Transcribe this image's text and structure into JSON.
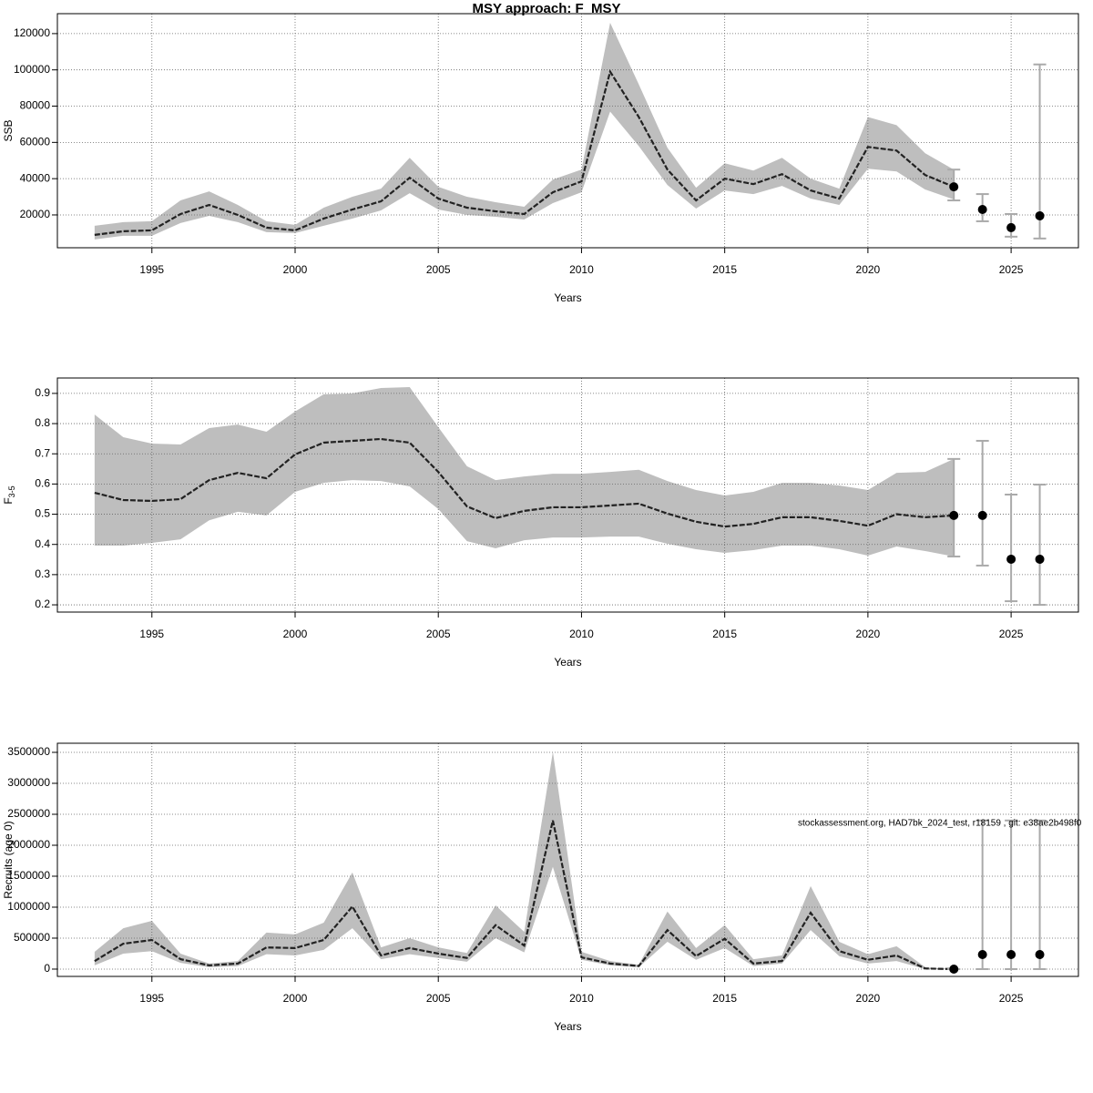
{
  "chart_data": [
    {
      "type": "line",
      "title": "MSY approach: F_MSY",
      "xlabel": "Years",
      "ylabel": "SSB",
      "xlim": [
        1991.7,
        2027.35
      ],
      "xticks": [
        1995,
        2000,
        2005,
        2010,
        2015,
        2020,
        2025
      ],
      "ylim": [
        1900,
        131000
      ],
      "yticks": [
        20000,
        40000,
        60000,
        80000,
        100000,
        120000
      ],
      "grid": true,
      "band_color": "#bebebe",
      "color": "#222222",
      "forecast_color": "#aaaaaa",
      "x": [
        1993,
        1994,
        1995,
        1996,
        1997,
        1998,
        1999,
        2000,
        2001,
        2002,
        2003,
        2004,
        2005,
        2006,
        2007,
        2008,
        2009,
        2010,
        2011,
        2012,
        2013,
        2014,
        2015,
        2016,
        2017,
        2018,
        2019,
        2020,
        2021,
        2022,
        2023
      ],
      "values": [
        9000,
        11000,
        11500,
        20500,
        25500,
        20000,
        13000,
        11500,
        18000,
        23000,
        27500,
        40500,
        29000,
        24000,
        22000,
        20500,
        32500,
        38500,
        99000,
        74000,
        45000,
        28000,
        40000,
        37000,
        42500,
        33500,
        29000,
        57500,
        55500,
        42000,
        35500
      ],
      "lower": [
        6500,
        8500,
        8500,
        15500,
        19500,
        16000,
        10500,
        10000,
        14000,
        18000,
        22500,
        32000,
        23000,
        20000,
        19000,
        17500,
        26500,
        32500,
        77000,
        58000,
        36500,
        23500,
        33500,
        31500,
        36000,
        29000,
        25500,
        45500,
        44000,
        34000,
        28500
      ],
      "upper": [
        14000,
        16000,
        16500,
        28000,
        33000,
        25500,
        16500,
        14500,
        24000,
        30000,
        34500,
        51500,
        35500,
        30000,
        27000,
        24500,
        39500,
        45000,
        126000,
        92000,
        57000,
        35000,
        48500,
        44500,
        51500,
        40000,
        34500,
        74000,
        69500,
        54000,
        45000
      ],
      "forecast": {
        "x": [
          2023,
          2024,
          2025,
          2026
        ],
        "values": [
          35500,
          23000,
          13000,
          19500
        ],
        "lower": [
          28000,
          16500,
          8000,
          7000
        ],
        "upper": [
          45000,
          31500,
          20500,
          103000
        ]
      }
    },
    {
      "type": "line",
      "xlabel": "Years",
      "ylabel": "F",
      "ylabel_sub": "3-5",
      "xlim": [
        1991.7,
        2027.35
      ],
      "xticks": [
        1995,
        2000,
        2005,
        2010,
        2015,
        2020,
        2025
      ],
      "ylim": [
        0.176,
        0.951
      ],
      "yticks": [
        0.2,
        0.3,
        0.4,
        0.5,
        0.6,
        0.7,
        0.8,
        0.9
      ],
      "grid": true,
      "band_color": "#bebebe",
      "color": "#222222",
      "forecast_color": "#aaaaaa",
      "x": [
        1993,
        1994,
        1995,
        1996,
        1997,
        1998,
        1999,
        2000,
        2001,
        2002,
        2003,
        2004,
        2005,
        2006,
        2007,
        2008,
        2009,
        2010,
        2011,
        2012,
        2013,
        2014,
        2015,
        2016,
        2017,
        2018,
        2019,
        2020,
        2021,
        2022,
        2023
      ],
      "values": [
        0.571,
        0.547,
        0.544,
        0.55,
        0.613,
        0.637,
        0.619,
        0.698,
        0.737,
        0.743,
        0.749,
        0.737,
        0.64,
        0.526,
        0.487,
        0.511,
        0.523,
        0.523,
        0.529,
        0.535,
        0.502,
        0.475,
        0.459,
        0.468,
        0.49,
        0.49,
        0.478,
        0.462,
        0.5,
        0.49,
        0.496
      ],
      "lower": [
        0.396,
        0.396,
        0.405,
        0.417,
        0.48,
        0.508,
        0.496,
        0.574,
        0.604,
        0.613,
        0.61,
        0.592,
        0.517,
        0.411,
        0.387,
        0.414,
        0.423,
        0.423,
        0.426,
        0.426,
        0.402,
        0.384,
        0.372,
        0.381,
        0.396,
        0.396,
        0.384,
        0.363,
        0.393,
        0.378,
        0.36
      ],
      "upper": [
        0.83,
        0.755,
        0.734,
        0.731,
        0.785,
        0.797,
        0.773,
        0.84,
        0.897,
        0.9,
        0.918,
        0.921,
        0.788,
        0.659,
        0.613,
        0.625,
        0.634,
        0.634,
        0.64,
        0.647,
        0.61,
        0.58,
        0.562,
        0.574,
        0.604,
        0.604,
        0.595,
        0.58,
        0.637,
        0.64,
        0.683
      ],
      "forecast": {
        "x": [
          2023,
          2024,
          2025,
          2026
        ],
        "values": [
          0.496,
          0.496,
          0.351,
          0.351
        ],
        "lower": [
          0.36,
          0.33,
          0.212,
          0.2
        ],
        "upper": [
          0.683,
          0.743,
          0.565,
          0.598
        ]
      }
    },
    {
      "type": "line",
      "xlabel": "Years",
      "ylabel": "Recruits (age 0)",
      "annotation": "stockassessment.org, HAD7bk_2024_test, r18159 , git: e38ae2b498f0",
      "xlim": [
        1991.7,
        2027.35
      ],
      "xticks": [
        1995,
        2000,
        2005,
        2010,
        2015,
        2020,
        2025
      ],
      "ylim": [
        -118000,
        3647000
      ],
      "yticks": [
        0,
        500000,
        1000000,
        1500000,
        2000000,
        2500000,
        3000000,
        3500000
      ],
      "grid": true,
      "band_color": "#bebebe",
      "color": "#222222",
      "forecast_color": "#aaaaaa",
      "x": [
        1993,
        1994,
        1995,
        1996,
        1997,
        1998,
        1999,
        2000,
        2001,
        2002,
        2003,
        2004,
        2005,
        2006,
        2007,
        2008,
        2009,
        2010,
        2011,
        2012,
        2013,
        2014,
        2015,
        2016,
        2017,
        2018,
        2019,
        2020,
        2021,
        2022,
        2023
      ],
      "values": [
        130000,
        410000,
        470000,
        160000,
        60000,
        90000,
        350000,
        340000,
        470000,
        1010000,
        220000,
        340000,
        250000,
        180000,
        710000,
        380000,
        2400000,
        190000,
        90000,
        50000,
        630000,
        210000,
        490000,
        90000,
        130000,
        910000,
        290000,
        150000,
        220000,
        10000,
        0
      ],
      "lower": [
        60000,
        250000,
        290000,
        100000,
        30000,
        50000,
        240000,
        220000,
        310000,
        660000,
        160000,
        240000,
        180000,
        120000,
        500000,
        270000,
        1650000,
        150000,
        60000,
        30000,
        440000,
        150000,
        340000,
        50000,
        90000,
        630000,
        210000,
        90000,
        130000,
        0,
        0
      ],
      "upper": [
        280000,
        660000,
        780000,
        250000,
        90000,
        130000,
        590000,
        560000,
        750000,
        1560000,
        350000,
        500000,
        350000,
        260000,
        1030000,
        600000,
        3510000,
        280000,
        130000,
        70000,
        930000,
        340000,
        710000,
        160000,
        220000,
        1340000,
        440000,
        240000,
        370000,
        30000,
        0
      ],
      "forecast": {
        "x": [
          2023,
          2024,
          2025,
          2026
        ],
        "values": [
          0,
          235000,
          235000,
          235000
        ],
        "lower": [
          0,
          0,
          0,
          0
        ],
        "upper": [
          0,
          2400000,
          2400000,
          2400000
        ]
      }
    }
  ]
}
